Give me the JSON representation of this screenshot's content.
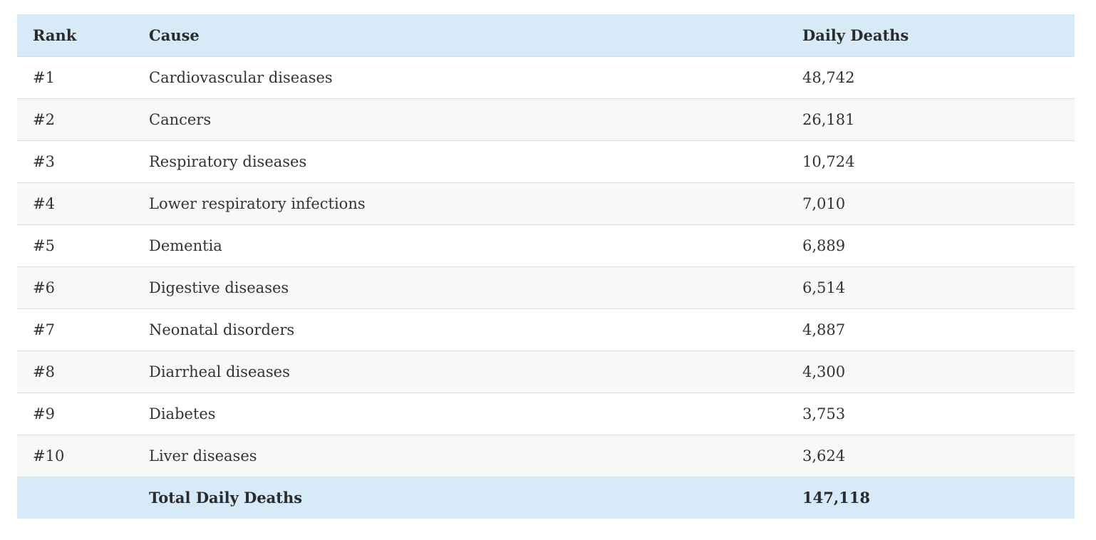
{
  "table": {
    "headers": {
      "rank": "Rank",
      "cause": "Cause",
      "deaths": "Daily Deaths"
    },
    "rows": [
      {
        "rank": "#1",
        "cause": "Cardiovascular diseases",
        "deaths": "48,742"
      },
      {
        "rank": "#2",
        "cause": "Cancers",
        "deaths": "26,181"
      },
      {
        "rank": "#3",
        "cause": "Respiratory diseases",
        "deaths": "10,724"
      },
      {
        "rank": "#4",
        "cause": "Lower respiratory infections",
        "deaths": "7,010"
      },
      {
        "rank": "#5",
        "cause": "Dementia",
        "deaths": "6,889"
      },
      {
        "rank": "#6",
        "cause": "Digestive diseases",
        "deaths": "6,514"
      },
      {
        "rank": "#7",
        "cause": "Neonatal disorders",
        "deaths": "4,887"
      },
      {
        "rank": "#8",
        "cause": "Diarrheal diseases",
        "deaths": "4,300"
      },
      {
        "rank": "#9",
        "cause": "Diabetes",
        "deaths": "3,753"
      },
      {
        "rank": "#10",
        "cause": "Liver diseases",
        "deaths": "3,624"
      }
    ],
    "total": {
      "label": "Total Daily Deaths",
      "value": "147,118"
    }
  },
  "colors": {
    "header_background": "#d6eaf7",
    "stripe_background": "#f8f8f8",
    "row_border": "#dddddd",
    "text": "#333333"
  }
}
